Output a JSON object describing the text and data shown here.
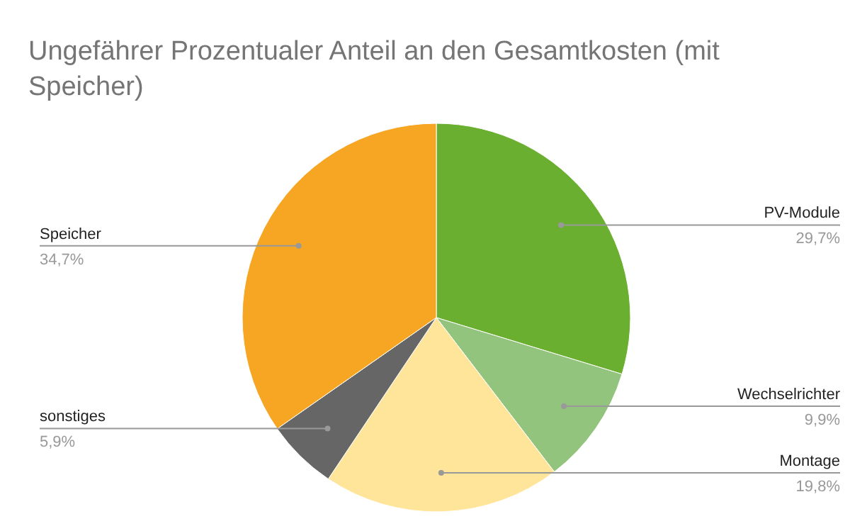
{
  "chart_data": {
    "type": "pie",
    "title": "Ungefährer Prozentualer Anteil an den Gesamtkosten (mit Speicher)",
    "categories": [
      "PV-Module",
      "Wechselrichter",
      "Montage",
      "sonstiges",
      "Speicher"
    ],
    "values": [
      29.7,
      9.9,
      19.8,
      5.9,
      34.7
    ],
    "value_labels": [
      "29,7%",
      "9,9%",
      "19,8%",
      "5,9%",
      "34,7%"
    ],
    "colors": [
      "#6aaf2f",
      "#93c47d",
      "#ffe599",
      "#666666",
      "#f6a623"
    ],
    "legend": false
  }
}
